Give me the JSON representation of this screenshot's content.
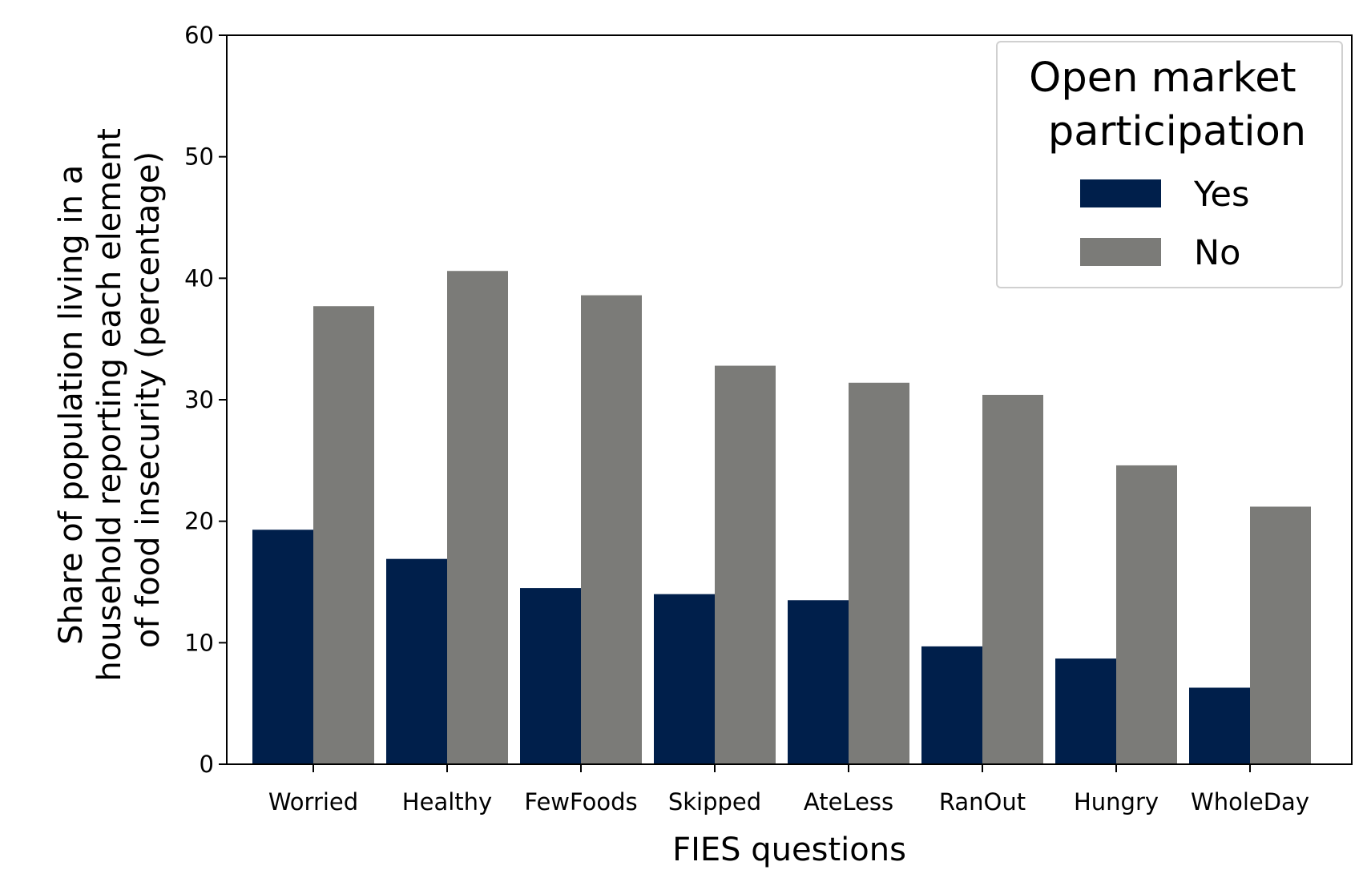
{
  "chart_data": {
    "type": "bar",
    "xlabel": "FIES questions",
    "ylabel": "Share of population living in a household reporting each element of food insecurity (percentage)",
    "ylabel_lines": [
      "Share of population living in a",
      "household reporting each element",
      "of food insecurity (percentage)"
    ],
    "categories": [
      "Worried",
      "Healthy",
      "FewFoods",
      "Skipped",
      "AteLess",
      "RanOut",
      "Hungry",
      "WholeDay"
    ],
    "series": [
      {
        "name": "Yes",
        "color": "#001f4b",
        "values": [
          19.3,
          16.9,
          14.5,
          14.0,
          13.5,
          9.7,
          8.7,
          6.3
        ]
      },
      {
        "name": "No",
        "color": "#7b7b78",
        "values": [
          37.7,
          40.6,
          38.6,
          32.8,
          31.4,
          30.4,
          24.6,
          21.2
        ]
      }
    ],
    "ylim": [
      0,
      60
    ],
    "yticks": [
      "0",
      "10",
      "20",
      "30",
      "40",
      "50",
      "60"
    ],
    "legend": {
      "title_lines": [
        "Open market",
        "participation"
      ],
      "placement": "top-right"
    },
    "grid": false
  }
}
